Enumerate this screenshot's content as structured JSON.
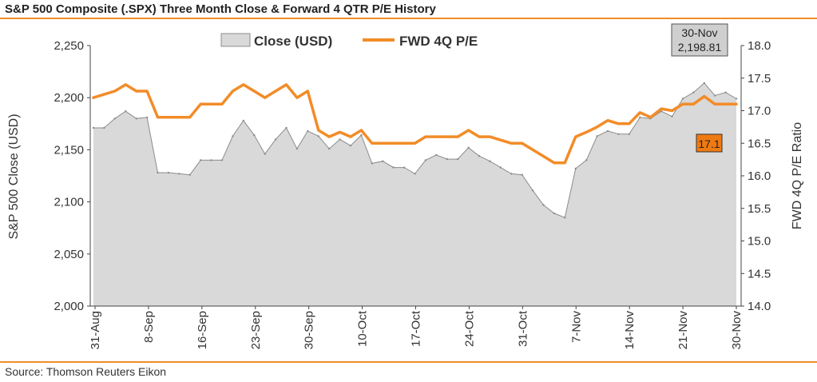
{
  "title": "S&P 500 Composite (.SPX) Three Month Close & Forward 4 QTR P/E History",
  "source": "Source: Thomson Reuters Eikon",
  "colors": {
    "accent": "#f28c28",
    "area_fill": "#d9d9d9",
    "area_stroke": "#8c8c8c",
    "pe_label_bg": "#f07a12"
  },
  "chart_data": {
    "type": "area",
    "x_tick_labels": [
      "31-Aug",
      "8-Sep",
      "16-Sep",
      "23-Sep",
      "30-Sep",
      "10-Oct",
      "17-Oct",
      "24-Oct",
      "31-Oct",
      "7-Nov",
      "14-Nov",
      "21-Nov",
      "30-Nov"
    ],
    "ylabel_left": "S&P 500 Close (USD)",
    "ylabel_right": "FWD 4Q P/E Ratio",
    "ylim_left": [
      2000,
      2250
    ],
    "yticks_left": [
      "2,000",
      "2,050",
      "2,100",
      "2,150",
      "2,200",
      "2,250"
    ],
    "ylim_right": [
      14.0,
      18.0
    ],
    "yticks_right": [
      "14.0",
      "14.5",
      "15.0",
      "15.5",
      "16.0",
      "16.5",
      "17.0",
      "17.5",
      "18.0"
    ],
    "legend": [
      "Close (USD)",
      "FWD 4Q P/E"
    ],
    "legend_position": "top-center",
    "series": [
      {
        "name": "Close (USD)",
        "axis": "left",
        "type": "area",
        "values": [
          2171,
          2171,
          2180,
          2187,
          2180,
          2181,
          2128,
          2128,
          2127,
          2126,
          2140,
          2140,
          2140,
          2163,
          2178,
          2164,
          2146,
          2160,
          2171,
          2151,
          2168,
          2163,
          2151,
          2160,
          2154,
          2164,
          2137,
          2139,
          2133,
          2133,
          2127,
          2140,
          2145,
          2141,
          2141,
          2152,
          2144,
          2139,
          2133,
          2127,
          2126,
          2111,
          2097,
          2089,
          2085,
          2132,
          2140,
          2163,
          2168,
          2165,
          2165,
          2181,
          2180,
          2187,
          2182,
          2199,
          2205,
          2214,
          2202,
          2205,
          2199
        ]
      },
      {
        "name": "FWD 4Q P/E",
        "axis": "right",
        "type": "line",
        "values": [
          17.2,
          17.25,
          17.3,
          17.4,
          17.3,
          17.3,
          16.9,
          16.9,
          16.9,
          16.9,
          17.1,
          17.1,
          17.1,
          17.3,
          17.4,
          17.3,
          17.2,
          17.3,
          17.4,
          17.2,
          17.3,
          16.7,
          16.6,
          16.67,
          16.6,
          16.7,
          16.5,
          16.5,
          16.5,
          16.5,
          16.5,
          16.6,
          16.6,
          16.6,
          16.6,
          16.7,
          16.6,
          16.6,
          16.55,
          16.5,
          16.5,
          16.4,
          16.3,
          16.2,
          16.2,
          16.6,
          16.67,
          16.75,
          16.85,
          16.8,
          16.8,
          16.97,
          16.9,
          17.03,
          17.0,
          17.1,
          17.1,
          17.22,
          17.1,
          17.1,
          17.1
        ]
      }
    ],
    "annotations": {
      "last_date": "30-Nov",
      "last_close": "2,198.81",
      "last_pe": "17.1"
    },
    "grid": false
  }
}
